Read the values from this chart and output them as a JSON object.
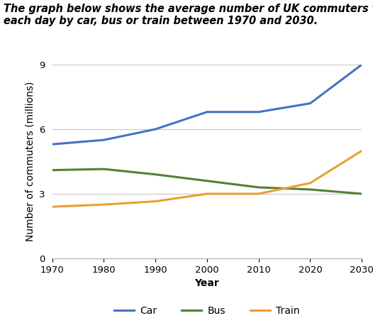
{
  "title_line1": "The graph below shows the average number of UK commuters travelling",
  "title_line2": "each day by car, bus or train between 1970 and 2030.",
  "xlabel": "Year",
  "ylabel": "Number of commuters (millions)",
  "years": [
    1970,
    1980,
    1990,
    2000,
    2010,
    2020,
    2030
  ],
  "car": [
    5.3,
    5.5,
    6.0,
    6.8,
    6.8,
    7.2,
    9.0
  ],
  "bus": [
    4.1,
    4.15,
    3.9,
    3.6,
    3.3,
    3.2,
    3.0
  ],
  "train": [
    2.4,
    2.5,
    2.65,
    3.0,
    3.0,
    3.5,
    5.0
  ],
  "car_color": "#4472c4",
  "bus_color": "#538135",
  "train_color": "#e9a030",
  "bg_color": "#ffffff",
  "grid_color": "#c8c8c8",
  "ylim": [
    0,
    9
  ],
  "yticks": [
    0,
    3,
    6,
    9
  ],
  "xticks": [
    1970,
    1980,
    1990,
    2000,
    2010,
    2020,
    2030
  ],
  "legend_labels": [
    "Car",
    "Bus",
    "Train"
  ],
  "title_fontsize": 10.5,
  "axis_label_fontsize": 10,
  "tick_fontsize": 9.5,
  "legend_fontsize": 10,
  "line_width": 2.2
}
